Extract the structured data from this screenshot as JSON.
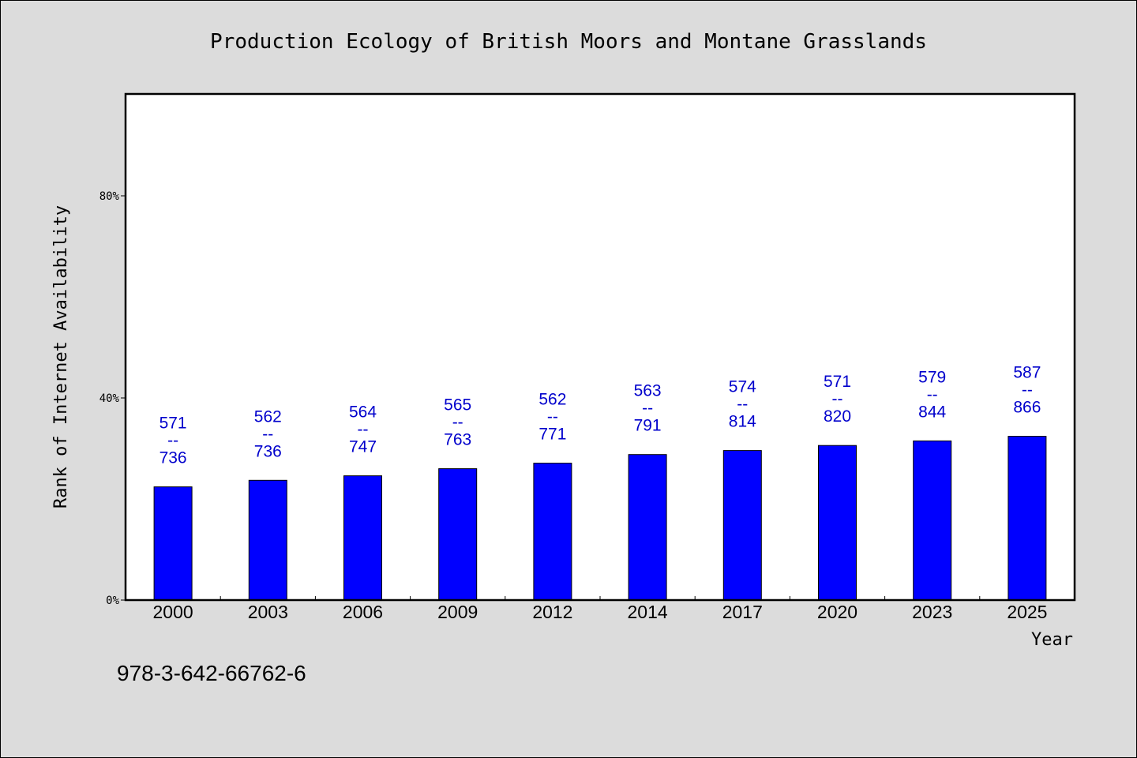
{
  "chart_data": {
    "type": "bar",
    "title": "Production Ecology of British Moors and Montane Grasslands",
    "xlabel": "Year",
    "ylabel": "Rank of Internet Availability",
    "categories": [
      "2000",
      "2003",
      "2006",
      "2009",
      "2012",
      "2014",
      "2017",
      "2020",
      "2023",
      "2025"
    ],
    "values": [
      22.4,
      23.7,
      24.6,
      26.0,
      27.1,
      28.8,
      29.6,
      30.6,
      31.5,
      32.4
    ],
    "bar_labels": [
      {
        "top": "571",
        "sep": "--",
        "bottom": "736"
      },
      {
        "top": "562",
        "sep": "--",
        "bottom": "736"
      },
      {
        "top": "564",
        "sep": "--",
        "bottom": "747"
      },
      {
        "top": "565",
        "sep": "--",
        "bottom": "763"
      },
      {
        "top": "562",
        "sep": "--",
        "bottom": "771"
      },
      {
        "top": "563",
        "sep": "--",
        "bottom": "791"
      },
      {
        "top": "574",
        "sep": "--",
        "bottom": "814"
      },
      {
        "top": "571",
        "sep": "--",
        "bottom": "820"
      },
      {
        "top": "579",
        "sep": "--",
        "bottom": "844"
      },
      {
        "top": "587",
        "sep": "--",
        "bottom": "866"
      }
    ],
    "ylim": [
      0,
      100
    ],
    "y_ticks": [
      0,
      40,
      80
    ],
    "y_tick_labels": [
      "0%",
      "40%",
      "80%"
    ],
    "grid": false,
    "legend": "none",
    "bar_color": "#0000ff",
    "label_color": "#0000cc",
    "background": "#dcdcdc",
    "plot_background": "#ffffff"
  },
  "footer": {
    "isbn": "978-3-642-66762-6"
  }
}
